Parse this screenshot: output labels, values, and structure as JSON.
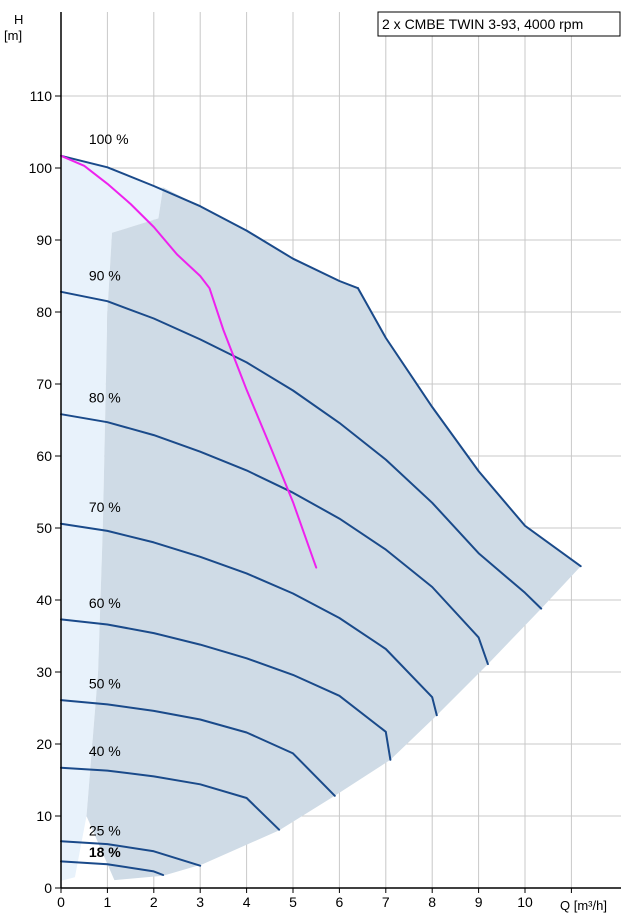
{
  "chart_data": {
    "type": "line",
    "title": "2 x CMBE TWIN 3-93, 4000 rpm",
    "xlabel": "Q [m³/h]",
    "ylabel_line1": "H",
    "ylabel_line2": "[m]",
    "xlim": [
      0,
      11.3
    ],
    "ylim": [
      0,
      121
    ],
    "x_ticks": [
      0,
      1,
      2,
      3,
      4,
      5,
      6,
      7,
      8,
      9,
      10
    ],
    "y_ticks": [
      0,
      10,
      20,
      30,
      40,
      50,
      60,
      70,
      80,
      90,
      100,
      110
    ],
    "grid": true,
    "colors": {
      "curve": "#1a4a8a",
      "system_curve": "#ee22ee",
      "operating_area": "#cfdbe6",
      "light_area": "#e8f2fb",
      "grid": "#c8c8c8"
    },
    "series": [
      {
        "name": "100 %",
        "x": [
          0,
          1,
          2,
          3,
          4,
          5,
          6,
          6.4
        ],
        "y": [
          101.7,
          100.1,
          97.5,
          94.7,
          91.3,
          87.4,
          84.3,
          83.3
        ]
      },
      {
        "name": "90 %",
        "x": [
          0,
          1,
          2,
          3,
          4,
          5,
          6,
          7,
          8,
          9,
          10,
          10.35
        ],
        "y": [
          82.8,
          81.5,
          79.1,
          76.2,
          73,
          69.1,
          64.6,
          59.5,
          53.5,
          46.5,
          41,
          38.8
        ]
      },
      {
        "name": "80 %",
        "x": [
          0,
          1,
          2,
          3,
          4,
          5,
          6,
          7,
          8,
          9,
          9.2
        ],
        "y": [
          65.8,
          64.7,
          62.9,
          60.6,
          58,
          54.9,
          51.3,
          47,
          41.8,
          34.8,
          31.1
        ]
      },
      {
        "name": "70 %",
        "x": [
          0,
          1,
          2,
          3,
          4,
          5,
          6,
          7,
          8,
          8.1
        ],
        "y": [
          50.6,
          49.6,
          48,
          46,
          43.7,
          40.9,
          37.5,
          33.2,
          26.5,
          24
        ]
      },
      {
        "name": "60 %",
        "x": [
          0,
          1,
          2,
          3,
          4,
          5,
          6,
          7,
          7.1
        ],
        "y": [
          37.3,
          36.6,
          35.4,
          33.8,
          31.9,
          29.6,
          26.7,
          21.7,
          17.8
        ]
      },
      {
        "name": "50 %",
        "x": [
          0,
          1,
          2,
          3,
          4,
          5,
          5.9
        ],
        "y": [
          26.1,
          25.5,
          24.6,
          23.4,
          21.6,
          18.7,
          12.8
        ]
      },
      {
        "name": "40 %",
        "x": [
          0,
          1,
          2,
          3,
          4,
          4.7
        ],
        "y": [
          16.7,
          16.3,
          15.5,
          14.4,
          12.5,
          8.1
        ]
      },
      {
        "name": "25 %",
        "x": [
          0,
          1,
          2,
          3
        ],
        "y": [
          6.5,
          6.1,
          5.1,
          3.1
        ]
      },
      {
        "name": "18 %",
        "x": [
          0,
          1,
          2,
          2.2
        ],
        "y": [
          3.7,
          3.3,
          2.3,
          1.8
        ]
      }
    ],
    "max_curve": {
      "x": [
        6.4,
        7,
        8,
        9,
        10,
        11.2
      ],
      "y": [
        83.3,
        76.4,
        66.8,
        57.9,
        50.3,
        44.7
      ]
    },
    "system_curve": {
      "x": [
        0,
        0.5,
        1,
        1.5,
        2,
        2.5,
        3,
        3.2,
        3.5,
        4,
        4.5,
        5,
        5.5
      ],
      "y": [
        101.7,
        100.3,
        97.8,
        95,
        91.8,
        88,
        85,
        83.3,
        77.5,
        69.2,
        61.5,
        53.6,
        44.5
      ]
    },
    "operating_area": {
      "x": [
        1.15,
        2.2,
        3.05,
        4.7,
        5.9,
        7.1,
        8.1,
        9.2,
        10.35,
        11.2,
        10,
        9,
        8,
        7,
        6.4,
        6,
        5,
        4,
        3,
        2.2,
        2.1,
        1.1,
        1.0,
        0.95,
        0.9,
        0.8,
        0.55
      ],
      "y": [
        1.1,
        1.7,
        3.3,
        8,
        12.8,
        17.8,
        24,
        31.1,
        38.8,
        44.7,
        50.3,
        57.9,
        66.8,
        76.4,
        83.3,
        84.3,
        87.4,
        91.3,
        94.7,
        97.3,
        93,
        91,
        80,
        65,
        50,
        30,
        10
      ]
    },
    "light_area": {
      "x": [
        0,
        0.5,
        1,
        1.5,
        2,
        2.1,
        2.2,
        2.1,
        1.1,
        1.0,
        0.95,
        0.9,
        0.8,
        0.55,
        0.3,
        0
      ],
      "y": [
        101.7,
        100.9,
        100.1,
        98.8,
        97.5,
        97.3,
        97.3,
        93,
        91,
        80,
        65,
        50,
        30,
        10,
        1.5,
        1
      ]
    },
    "label_positions_data": [
      {
        "label": "100 %",
        "x": 0.6,
        "y": 103.3
      },
      {
        "label": "90 %",
        "x": 0.6,
        "y": 84.4
      },
      {
        "label": "80 %",
        "x": 0.6,
        "y": 67.4
      },
      {
        "label": "70 %",
        "x": 0.6,
        "y": 52.2
      },
      {
        "label": "60 %",
        "x": 0.6,
        "y": 38.9
      },
      {
        "label": "50 %",
        "x": 0.6,
        "y": 27.7
      },
      {
        "label": "40 %",
        "x": 0.6,
        "y": 18.3
      },
      {
        "label": "25 %",
        "x": 0.6,
        "y": 7.3
      },
      {
        "label": "18 %",
        "x": 0.6,
        "y": 4.3
      }
    ]
  }
}
